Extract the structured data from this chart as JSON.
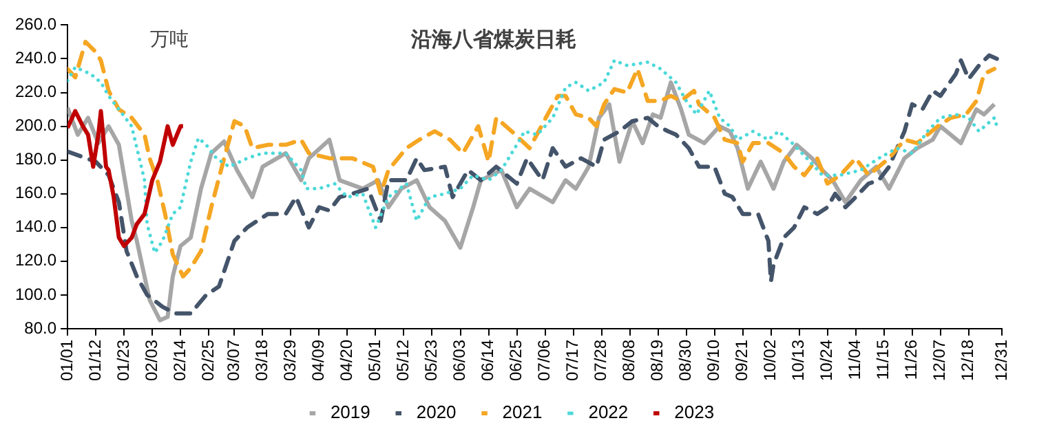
{
  "chart_data": {
    "type": "line",
    "title": "沿海八省煤炭日耗",
    "annotations": [
      "万吨"
    ],
    "xlim": [
      "--01-01",
      "--12-31"
    ],
    "xticks": [
      {
        "value": "--01-01",
        "label": "01/01"
      },
      {
        "value": "--01-12",
        "label": "01/12"
      },
      {
        "value": "--01-23",
        "label": "01/23"
      },
      {
        "value": "--02-03",
        "label": "02/03"
      },
      {
        "value": "--02-14",
        "label": "02/14"
      },
      {
        "value": "--02-25",
        "label": "02/25"
      },
      {
        "value": "--03-07",
        "label": "03/07"
      },
      {
        "value": "--03-18",
        "label": "03/18"
      },
      {
        "value": "--03-29",
        "label": "03/29"
      },
      {
        "value": "--04-09",
        "label": "04/09"
      },
      {
        "value": "--04-20",
        "label": "04/20"
      },
      {
        "value": "--05-01",
        "label": "05/01"
      },
      {
        "value": "--05-12",
        "label": "05/12"
      },
      {
        "value": "--05-23",
        "label": "05/23"
      },
      {
        "value": "--06-03",
        "label": "06/03"
      },
      {
        "value": "--06-14",
        "label": "06/14"
      },
      {
        "value": "--06-25",
        "label": "06/25"
      },
      {
        "value": "--07-06",
        "label": "07/06"
      },
      {
        "value": "--07-17",
        "label": "07/17"
      },
      {
        "value": "--07-28",
        "label": "07/28"
      },
      {
        "value": "--08-08",
        "label": "08/08"
      },
      {
        "value": "--08-19",
        "label": "08/19"
      },
      {
        "value": "--08-30",
        "label": "08/30"
      },
      {
        "value": "--09-10",
        "label": "09/10"
      },
      {
        "value": "--09-21",
        "label": "09/21"
      },
      {
        "value": "--10-02",
        "label": "10/02"
      },
      {
        "value": "--10-13",
        "label": "10/13"
      },
      {
        "value": "--10-24",
        "label": "10/24"
      },
      {
        "value": "--11-04",
        "label": "11/04"
      },
      {
        "value": "--11-15",
        "label": "11/15"
      },
      {
        "value": "--11-26",
        "label": "11/26"
      },
      {
        "value": "--12-07",
        "label": "12/07"
      },
      {
        "value": "--12-18",
        "label": "12/18"
      },
      {
        "value": "--12-31",
        "label": "12/31"
      }
    ],
    "ylim": [
      80,
      260
    ],
    "yticks": [
      {
        "value": 80,
        "label": "80.0"
      },
      {
        "value": 100,
        "label": "100.0"
      },
      {
        "value": 120,
        "label": "120.0"
      },
      {
        "value": 140,
        "label": "140.0"
      },
      {
        "value": 160,
        "label": "160.0"
      },
      {
        "value": 180,
        "label": "180.0"
      },
      {
        "value": 200,
        "label": "200.0"
      },
      {
        "value": 220,
        "label": "220.0"
      },
      {
        "value": 240,
        "label": "240.0"
      },
      {
        "value": 260,
        "label": "260.0"
      }
    ],
    "grid": false,
    "legend": "bottom",
    "marker": "none",
    "series": [
      {
        "name": "2019",
        "color": "#a6a6a6",
        "line_style": "solid",
        "x": [
          "--01-01",
          "--01-05",
          "--01-09",
          "--01-13",
          "--01-17",
          "--01-21",
          "--01-26",
          "--01-28",
          "--02-02",
          "--02-06",
          "--02-09",
          "--02-11",
          "--02-14",
          "--02-18",
          "--02-22",
          "--02-26",
          "--03-03",
          "--03-08",
          "--03-14",
          "--03-18",
          "--03-27",
          "--04-02",
          "--04-05",
          "--04-13",
          "--04-17",
          "--04-26",
          "--05-02",
          "--05-06",
          "--05-11",
          "--05-17",
          "--05-22",
          "--05-28",
          "--06-03",
          "--06-08",
          "--06-11",
          "--06-19",
          "--06-25",
          "--06-30",
          "--07-09",
          "--07-14",
          "--07-18",
          "--07-23",
          "--07-27",
          "--07-31",
          "--08-04",
          "--08-09",
          "--08-13",
          "--08-17",
          "--08-20",
          "--08-24",
          "--08-28",
          "--08-31",
          "--09-06",
          "--09-12",
          "--09-16",
          "--09-19",
          "--09-23",
          "--09-28",
          "--10-03",
          "--10-07",
          "--10-12",
          "--10-18",
          "--10-22",
          "--10-26",
          "--10-31",
          "--11-06",
          "--11-12",
          "--11-17",
          "--11-23",
          "--11-28",
          "--12-04",
          "--12-07",
          "--12-15",
          "--12-21",
          "--12-24",
          "--12-28"
        ],
        "values": [
          211,
          195,
          205,
          190,
          200,
          189,
          144,
          132,
          97,
          85,
          87,
          111,
          129,
          134,
          163,
          184,
          191,
          174,
          158,
          176,
          184,
          168,
          181,
          192,
          168,
          163,
          168,
          152,
          163,
          168,
          152,
          144,
          128,
          152,
          168,
          174,
          152,
          163,
          155,
          168,
          163,
          176,
          205,
          213,
          179,
          203,
          190,
          207,
          205,
          226,
          210,
          195,
          190,
          200,
          197,
          187,
          163,
          179,
          163,
          179,
          189,
          181,
          174,
          168,
          155,
          168,
          176,
          163,
          181,
          187,
          192,
          200,
          190,
          210,
          207,
          213
        ]
      },
      {
        "name": "2020",
        "color": "#44546a",
        "line_style": "dashed",
        "x": [
          "--01-01",
          "--01-12",
          "--01-17",
          "--01-21",
          "--01-24",
          "--01-28",
          "--02-01",
          "--02-07",
          "--02-12",
          "--02-18",
          "--02-24",
          "--03-01",
          "--03-07",
          "--03-12",
          "--03-20",
          "--03-27",
          "--03-31",
          "--04-05",
          "--04-09",
          "--04-13",
          "--04-17",
          "--04-22",
          "--04-28",
          "--05-03",
          "--05-06",
          "--05-13",
          "--05-17",
          "--05-20",
          "--05-28",
          "--05-31",
          "--06-06",
          "--06-11",
          "--06-17",
          "--06-25",
          "--06-29",
          "--07-05",
          "--07-09",
          "--07-14",
          "--07-20",
          "--07-26",
          "--07-29",
          "--08-04",
          "--08-09",
          "--08-15",
          "--08-19",
          "--08-23",
          "--08-26",
          "--08-31",
          "--09-04",
          "--09-10",
          "--09-14",
          "--09-17",
          "--09-21",
          "--09-27",
          "--10-01",
          "--10-02",
          "--10-03",
          "--10-07",
          "--10-11",
          "--10-15",
          "--10-20",
          "--10-24",
          "--10-27",
          "--10-31",
          "--11-04",
          "--11-09",
          "--11-13",
          "--11-17",
          "--11-23",
          "--11-26",
          "--11-30",
          "--12-04",
          "--12-07",
          "--12-13",
          "--12-15",
          "--12-18",
          "--12-22",
          "--12-26",
          "--12-29"
        ],
        "values": [
          185,
          179,
          171,
          155,
          126,
          111,
          100,
          93,
          89,
          89,
          100,
          105,
          132,
          140,
          148,
          148,
          158,
          140,
          152,
          150,
          158,
          160,
          163,
          144,
          168,
          168,
          181,
          174,
          176,
          158,
          174,
          168,
          176,
          166,
          181,
          168,
          187,
          176,
          181,
          176,
          192,
          197,
          203,
          205,
          200,
          197,
          195,
          187,
          176,
          176,
          160,
          158,
          148,
          148,
          132,
          108,
          118,
          134,
          140,
          152,
          148,
          152,
          160,
          152,
          158,
          166,
          168,
          176,
          197,
          213,
          210,
          221,
          218,
          231,
          239,
          228,
          236,
          242,
          240
        ]
      },
      {
        "name": "2021",
        "color": "#f5a623",
        "line_style": "dashed",
        "x": [
          "--01-01",
          "--01-04",
          "--01-08",
          "--01-12",
          "--01-14",
          "--01-17",
          "--01-21",
          "--01-26",
          "--01-31",
          "--02-02",
          "--02-05",
          "--02-08",
          "--02-11",
          "--02-15",
          "--02-18",
          "--02-22",
          "--02-26",
          "--03-03",
          "--03-07",
          "--03-11",
          "--03-14",
          "--03-20",
          "--03-27",
          "--04-02",
          "--04-05",
          "--04-13",
          "--04-22",
          "--04-30",
          "--05-03",
          "--05-06",
          "--05-13",
          "--05-18",
          "--05-24",
          "--05-30",
          "--06-04",
          "--06-10",
          "--06-14",
          "--06-17",
          "--06-23",
          "--06-30",
          "--07-07",
          "--07-11",
          "--07-14",
          "--07-18",
          "--07-23",
          "--07-26",
          "--07-29",
          "--08-02",
          "--08-07",
          "--08-11",
          "--08-15",
          "--08-20",
          "--08-24",
          "--08-28",
          "--09-02",
          "--09-04",
          "--09-10",
          "--09-14",
          "--09-19",
          "--09-21",
          "--09-25",
          "--10-01",
          "--10-07",
          "--10-11",
          "--10-15",
          "--10-20",
          "--10-24",
          "--10-29",
          "--11-04",
          "--11-09",
          "--11-17",
          "--11-23",
          "--11-28",
          "--12-06",
          "--12-11",
          "--12-17",
          "--12-21",
          "--12-24",
          "--12-28"
        ],
        "values": [
          234,
          229,
          250,
          244,
          239,
          221,
          210,
          205,
          195,
          181,
          168,
          148,
          124,
          111,
          116,
          126,
          152,
          181,
          203,
          200,
          187,
          189,
          189,
          192,
          184,
          181,
          181,
          176,
          160,
          174,
          187,
          192,
          197,
          192,
          184,
          200,
          179,
          205,
          197,
          187,
          207,
          218,
          218,
          207,
          205,
          200,
          213,
          222,
          220,
          234,
          215,
          215,
          218,
          215,
          221,
          213,
          205,
          192,
          190,
          179,
          190,
          190,
          184,
          176,
          171,
          181,
          166,
          171,
          181,
          171,
          181,
          192,
          190,
          200,
          205,
          207,
          215,
          231,
          234
        ]
      },
      {
        "name": "2022",
        "color": "#4dd9d9",
        "line_style": "dotted",
        "x": [
          "--01-01",
          "--01-04",
          "--01-10",
          "--01-14",
          "--01-17",
          "--01-21",
          "--01-26",
          "--01-31",
          "--02-01",
          "--02-04",
          "--02-07",
          "--02-11",
          "--02-14",
          "--02-18",
          "--02-21",
          "--02-24",
          "--02-28",
          "--03-05",
          "--03-12",
          "--03-18",
          "--03-27",
          "--04-02",
          "--04-04",
          "--04-09",
          "--04-15",
          "--04-20",
          "--04-26",
          "--05-01",
          "--05-06",
          "--05-13",
          "--05-17",
          "--05-22",
          "--05-28",
          "--06-03",
          "--06-08",
          "--06-14",
          "--06-19",
          "--06-25",
          "--06-28",
          "--07-03",
          "--07-09",
          "--07-14",
          "--07-18",
          "--07-23",
          "--07-29",
          "--08-02",
          "--08-07",
          "--08-15",
          "--08-20",
          "--08-26",
          "--08-30",
          "--09-03",
          "--09-08",
          "--09-12",
          "--09-16",
          "--09-19",
          "--09-25",
          "--10-01",
          "--10-05",
          "--10-11",
          "--10-16",
          "--10-22",
          "--10-29",
          "--11-06",
          "--11-13",
          "--11-20",
          "--11-26",
          "--12-02",
          "--12-07",
          "--12-13",
          "--12-18",
          "--12-22",
          "--12-28",
          "--12-29"
        ],
        "values": [
          227,
          235,
          231,
          226,
          218,
          210,
          200,
          168,
          142,
          125,
          132,
          148,
          152,
          179,
          193,
          189,
          181,
          176,
          181,
          184,
          184,
          174,
          163,
          163,
          166,
          158,
          160,
          140,
          158,
          166,
          144,
          158,
          160,
          163,
          171,
          168,
          174,
          189,
          197,
          195,
          205,
          223,
          226,
          221,
          226,
          239,
          236,
          238,
          234,
          226,
          215,
          207,
          221,
          205,
          200,
          192,
          197,
          192,
          197,
          189,
          181,
          171,
          171,
          174,
          181,
          187,
          184,
          197,
          205,
          207,
          205,
          197,
          205,
          200
        ]
      },
      {
        "name": "2023",
        "color": "#c00000",
        "line_style": "solid",
        "x": [
          "--01-01",
          "--01-04",
          "--01-07",
          "--01-09",
          "--01-11",
          "--01-13",
          "--01-14",
          "--01-16",
          "--01-17",
          "--01-19",
          "--01-21",
          "--01-23",
          "--01-26",
          "--01-28",
          "--01-31",
          "--02-03",
          "--02-06",
          "--02-09",
          "--02-11",
          "--02-14",
          "--02-15"
        ],
        "values": [
          199,
          209,
          200,
          195,
          176,
          195,
          209,
          176,
          174,
          158,
          134,
          129,
          134,
          142,
          148,
          168,
          179,
          200,
          189,
          200,
          200
        ]
      }
    ]
  }
}
